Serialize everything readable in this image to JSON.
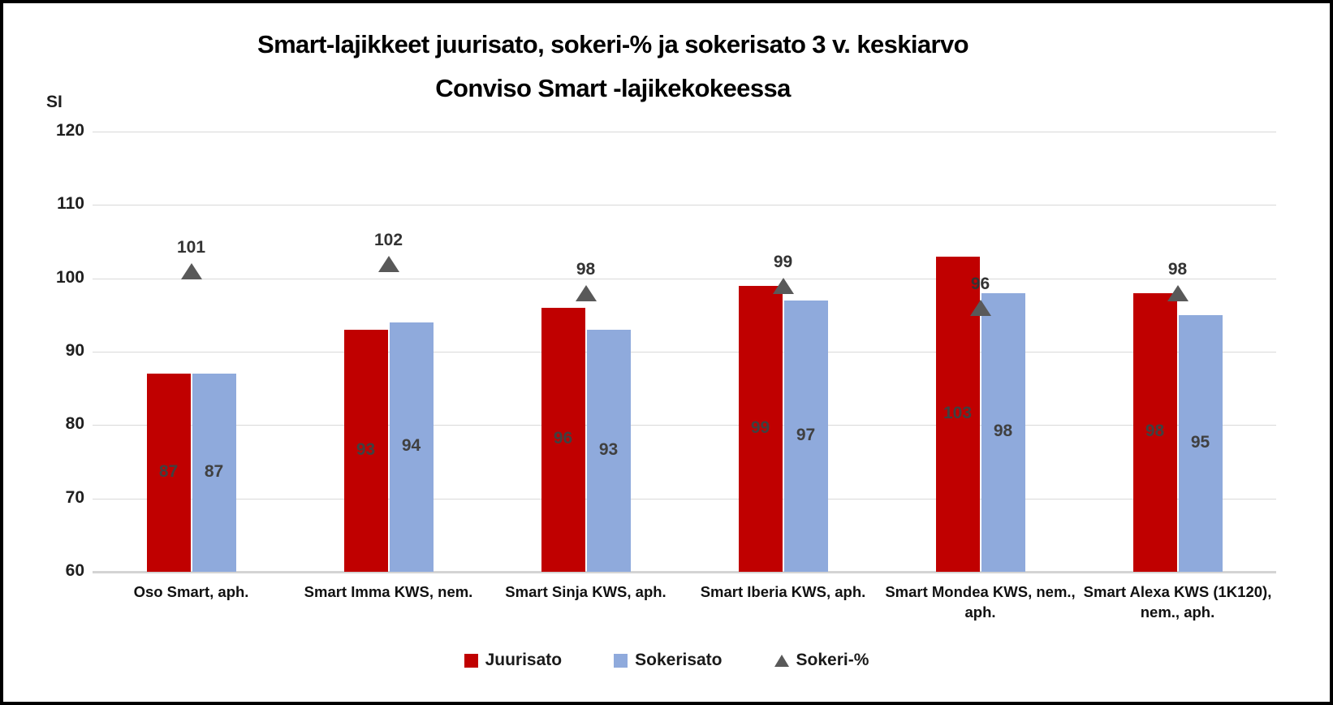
{
  "chart_data": {
    "type": "bar",
    "title_lines": [
      "Smart-lajikkeet juurisato, sokeri-% ja sokerisato 3 v. keskiarvo",
      "Conviso Smart -lajikekokeessa"
    ],
    "ylabel": "SI",
    "ylim": [
      60,
      120
    ],
    "yticks": [
      60,
      70,
      80,
      90,
      100,
      110,
      120
    ],
    "grid": true,
    "legend_position": "bottom",
    "categories": [
      "Oso Smart, aph.",
      "Smart Imma KWS, nem.",
      "Smart Sinja KWS, aph.",
      "Smart Iberia KWS, aph.",
      "Smart Mondea KWS, nem., aph.",
      "Smart Alexa KWS (1K120), nem., aph."
    ],
    "series": [
      {
        "name": "Juurisato",
        "type": "bar",
        "color": "#C00000",
        "values": [
          87,
          93,
          96,
          99,
          103,
          98
        ]
      },
      {
        "name": "Sokerisato",
        "type": "bar",
        "color": "#8FAADC",
        "values": [
          87,
          94,
          93,
          97,
          98,
          95
        ]
      },
      {
        "name": "Sokeri-%",
        "type": "triangle-marker",
        "color": "#595959",
        "values": [
          101,
          102,
          98,
          99,
          96,
          98
        ]
      }
    ],
    "colors": {
      "gridline": "#D9D9D9",
      "axis_line": "#D4D4D4",
      "bar_value_label": "#404040",
      "tick_label": "#1F1F1F",
      "title": "#000000",
      "border": "#000000"
    }
  }
}
